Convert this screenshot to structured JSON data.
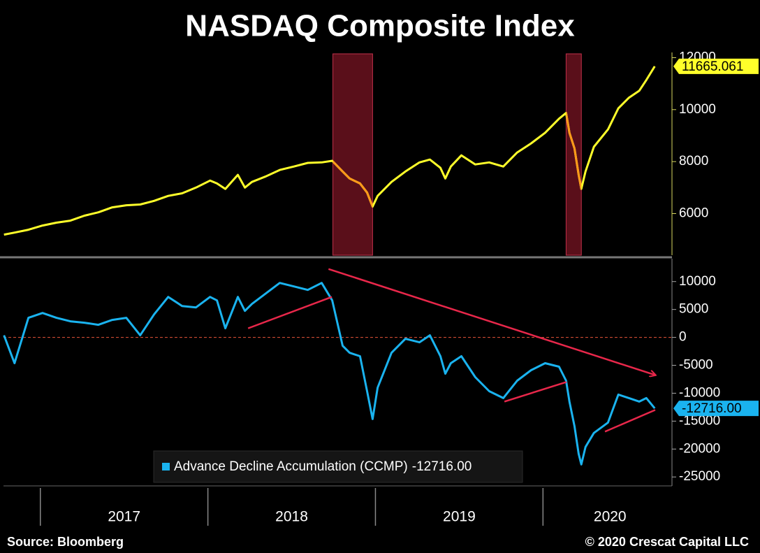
{
  "chart_data": [
    {
      "type": "line",
      "title": "NASDAQ Composite Index",
      "x": [
        2016.783,
        2016.846,
        2016.929,
        2017.013,
        2017.096,
        2017.179,
        2017.263,
        2017.346,
        2017.429,
        2017.513,
        2017.596,
        2017.679,
        2017.763,
        2017.846,
        2017.929,
        2018.013,
        2018.054,
        2018.104,
        2018.179,
        2018.221,
        2018.263,
        2018.346,
        2018.429,
        2018.513,
        2018.596,
        2018.679,
        2018.742,
        2018.804,
        2018.846,
        2018.908,
        2018.95,
        2018.983,
        2019.013,
        2019.096,
        2019.179,
        2019.263,
        2019.325,
        2019.388,
        2019.417,
        2019.45,
        2019.513,
        2019.596,
        2019.679,
        2019.763,
        2019.846,
        2019.929,
        2020.013,
        2020.096,
        2020.138,
        2020.158,
        2020.188,
        2020.213,
        2020.229,
        2020.254,
        2020.304,
        2020.388,
        2020.45,
        2020.513,
        2020.575,
        2020.617,
        2020.667
      ],
      "series": [
        {
          "color": "#ffff2a",
          "highlight_color": "#ff9a1a",
          "values": [
            5190,
            5270,
            5380,
            5540,
            5650,
            5730,
            5920,
            6050,
            6240,
            6320,
            6350,
            6490,
            6680,
            6780,
            7000,
            7270,
            7160,
            6950,
            7490,
            7000,
            7220,
            7430,
            7680,
            7810,
            7950,
            7970,
            8030,
            7620,
            7350,
            7160,
            6810,
            6270,
            6680,
            7220,
            7620,
            7970,
            8080,
            7760,
            7350,
            7810,
            8240,
            7890,
            7970,
            7810,
            8350,
            8700,
            9110,
            9650,
            9870,
            9110,
            8510,
            7490,
            6950,
            7620,
            8570,
            9240,
            10050,
            10460,
            10730,
            11140,
            11665.061
          ]
        }
      ],
      "xlim": [
        2016.78,
        2020.77
      ],
      "ylim": [
        4400,
        12200
      ],
      "yticks": [
        6000,
        8000,
        10000,
        12000
      ],
      "shaded_ranges": [
        [
          2018.746,
          2018.983
        ],
        [
          2020.138,
          2020.229
        ]
      ],
      "shade_color": "#5a0f1a",
      "end_label": true
    },
    {
      "type": "line",
      "x": [
        2016.783,
        2016.846,
        2016.929,
        2017.013,
        2017.096,
        2017.179,
        2017.263,
        2017.346,
        2017.429,
        2017.513,
        2017.596,
        2017.679,
        2017.763,
        2017.846,
        2017.929,
        2018.013,
        2018.054,
        2018.104,
        2018.179,
        2018.221,
        2018.263,
        2018.346,
        2018.429,
        2018.513,
        2018.596,
        2018.679,
        2018.742,
        2018.804,
        2018.846,
        2018.908,
        2018.95,
        2018.983,
        2019.013,
        2019.096,
        2019.179,
        2019.263,
        2019.325,
        2019.388,
        2019.417,
        2019.45,
        2019.513,
        2019.596,
        2019.679,
        2019.763,
        2019.846,
        2019.929,
        2020.013,
        2020.096,
        2020.138,
        2020.158,
        2020.188,
        2020.213,
        2020.229,
        2020.254,
        2020.304,
        2020.388,
        2020.45,
        2020.513,
        2020.575,
        2020.617,
        2020.667
      ],
      "series": [
        {
          "name": "Advance Decline Accumulation (CCMP)",
          "color": "#1ab3ef",
          "values": [
            375,
            -4625,
            3500,
            4375,
            3500,
            2875,
            2625,
            2250,
            3125,
            3500,
            375,
            4125,
            7250,
            5625,
            5375,
            7250,
            6625,
            1625,
            7250,
            4750,
            6000,
            7875,
            9750,
            9125,
            8500,
            9750,
            6625,
            -1500,
            -2750,
            -3375,
            -9625,
            -14625,
            -9000,
            -2750,
            -250,
            -875,
            375,
            -3375,
            -6500,
            -4625,
            -3375,
            -7125,
            -9625,
            -10875,
            -7750,
            -5875,
            -4625,
            -5250,
            -7750,
            -11500,
            -15875,
            -20875,
            -22750,
            -19625,
            -17125,
            -15250,
            -10250,
            -10875,
            -11500,
            -10875,
            -12716
          ],
          "value_labels": [
            null,
            null,
            null,
            null,
            null,
            null,
            null,
            null,
            null,
            null,
            null,
            null,
            null,
            null,
            null,
            null,
            null,
            null,
            null,
            null,
            null,
            null,
            null,
            null,
            null,
            null,
            null,
            null,
            null,
            null,
            null,
            null,
            null,
            null,
            null,
            null,
            null,
            null,
            null,
            null,
            null,
            null,
            null,
            null,
            null,
            null,
            null,
            null,
            null,
            null,
            null,
            null,
            null,
            null,
            null,
            null,
            null,
            null,
            null,
            null,
            "-12716.00"
          ]
        }
      ],
      "xlim": [
        2016.78,
        2020.77
      ],
      "ylim": [
        -26600,
        14100
      ],
      "yticks": [
        -25000,
        -20000,
        -15000,
        -10000,
        -5000,
        0,
        5000,
        10000
      ],
      "xticks": [
        {
          "value": 2017.5,
          "label": "2017"
        },
        {
          "value": 2018.5,
          "label": "2018"
        },
        {
          "value": 2019.5,
          "label": "2019"
        },
        {
          "value": 2020.4,
          "label": "2020"
        }
      ],
      "year_starts": [
        2017,
        2018,
        2019,
        2020
      ],
      "zero_line": true,
      "legend": true,
      "end_label": true,
      "trend_lines": [
        {
          "x": [
            2018.24,
            2018.74
          ],
          "y": [
            1625,
            7250
          ],
          "color": "#e8274a"
        },
        {
          "x": [
            2018.72,
            2020.67
          ],
          "y": [
            12250,
            -6750
          ],
          "color": "#e8274a",
          "arrow": true
        },
        {
          "x": [
            2019.77,
            2020.14
          ],
          "y": [
            -11500,
            -8000
          ],
          "color": "#e8274a"
        },
        {
          "x": [
            2020.37,
            2020.67
          ],
          "y": [
            -16875,
            -13000
          ],
          "color": "#e8274a"
        }
      ]
    }
  ],
  "footer": {
    "source": "Source: Bloomberg",
    "copyright": "© 2020 Crescat Capital LLC"
  }
}
